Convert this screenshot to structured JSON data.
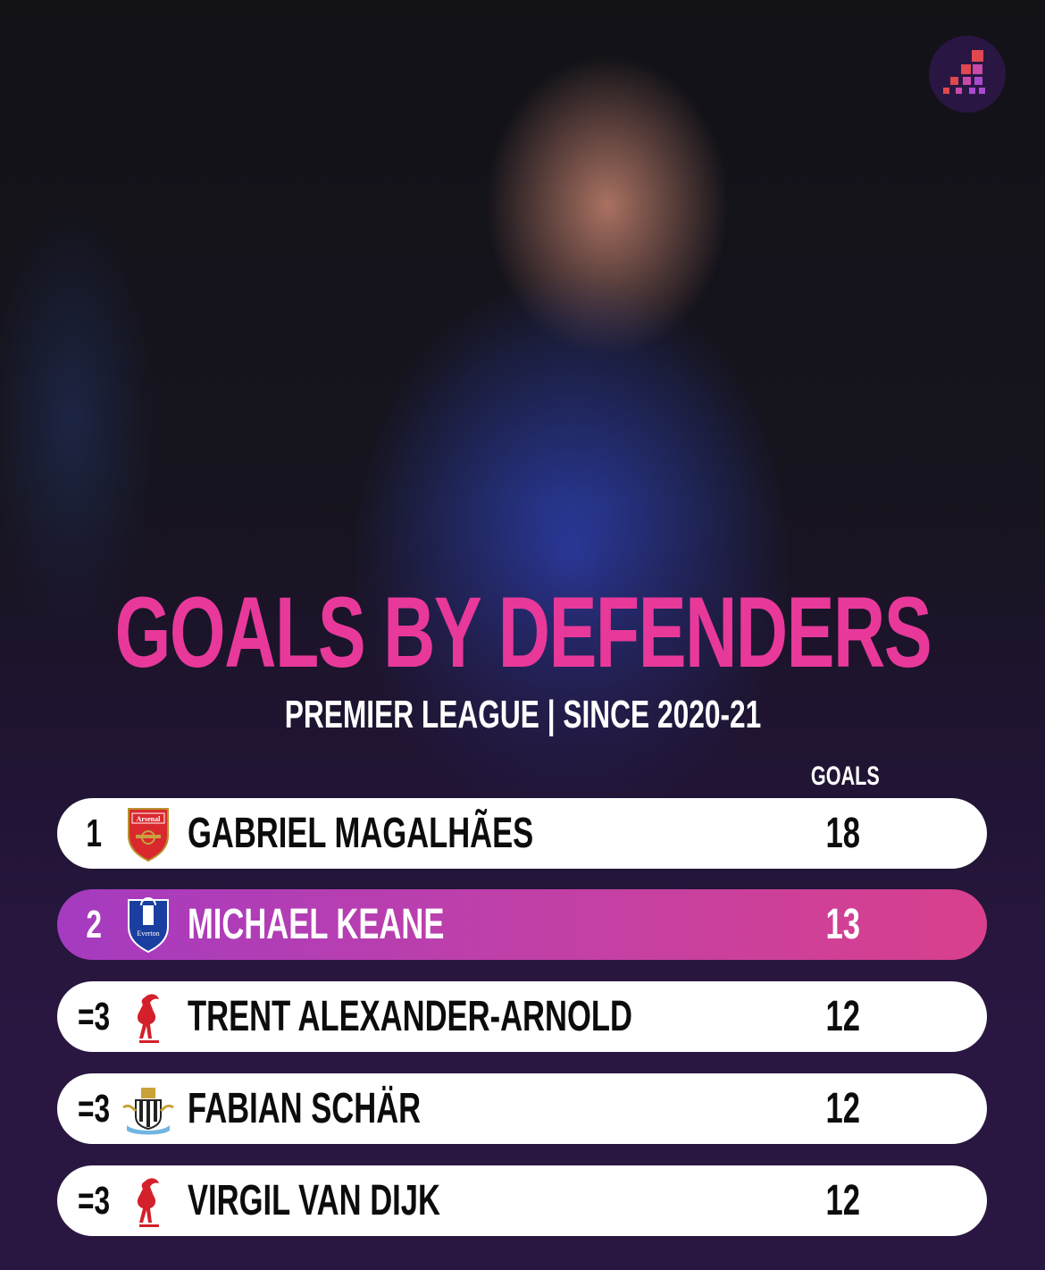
{
  "brand_logo": "stat-steps-logo",
  "title": "GOALS BY DEFENDERS",
  "subtitle": "PREMIER LEAGUE | SINCE 2020-21",
  "column_header": "GOALS",
  "colors": {
    "accent_pink": "#e8399a",
    "highlight_start": "#a53bc0",
    "highlight_end": "#d8408c",
    "background": "#2a1741"
  },
  "rows": [
    {
      "rank": "1",
      "club": "Arsenal",
      "crest_text": "Arsenal",
      "player": "GABRIEL MAGALHÃES",
      "goals": "18",
      "highlighted": false
    },
    {
      "rank": "2",
      "club": "Everton",
      "crest_text": "Everton",
      "player": "MICHAEL KEANE",
      "goals": "13",
      "highlighted": true
    },
    {
      "rank": "=3",
      "club": "Liverpool",
      "player": "TRENT ALEXANDER-ARNOLD",
      "goals": "12",
      "highlighted": false
    },
    {
      "rank": "=3",
      "club": "Newcastle United",
      "player": "FABIAN SCHÄR",
      "goals": "12",
      "highlighted": false
    },
    {
      "rank": "=3",
      "club": "Liverpool",
      "player": "VIRGIL VAN DIJK",
      "goals": "12",
      "highlighted": false
    }
  ]
}
